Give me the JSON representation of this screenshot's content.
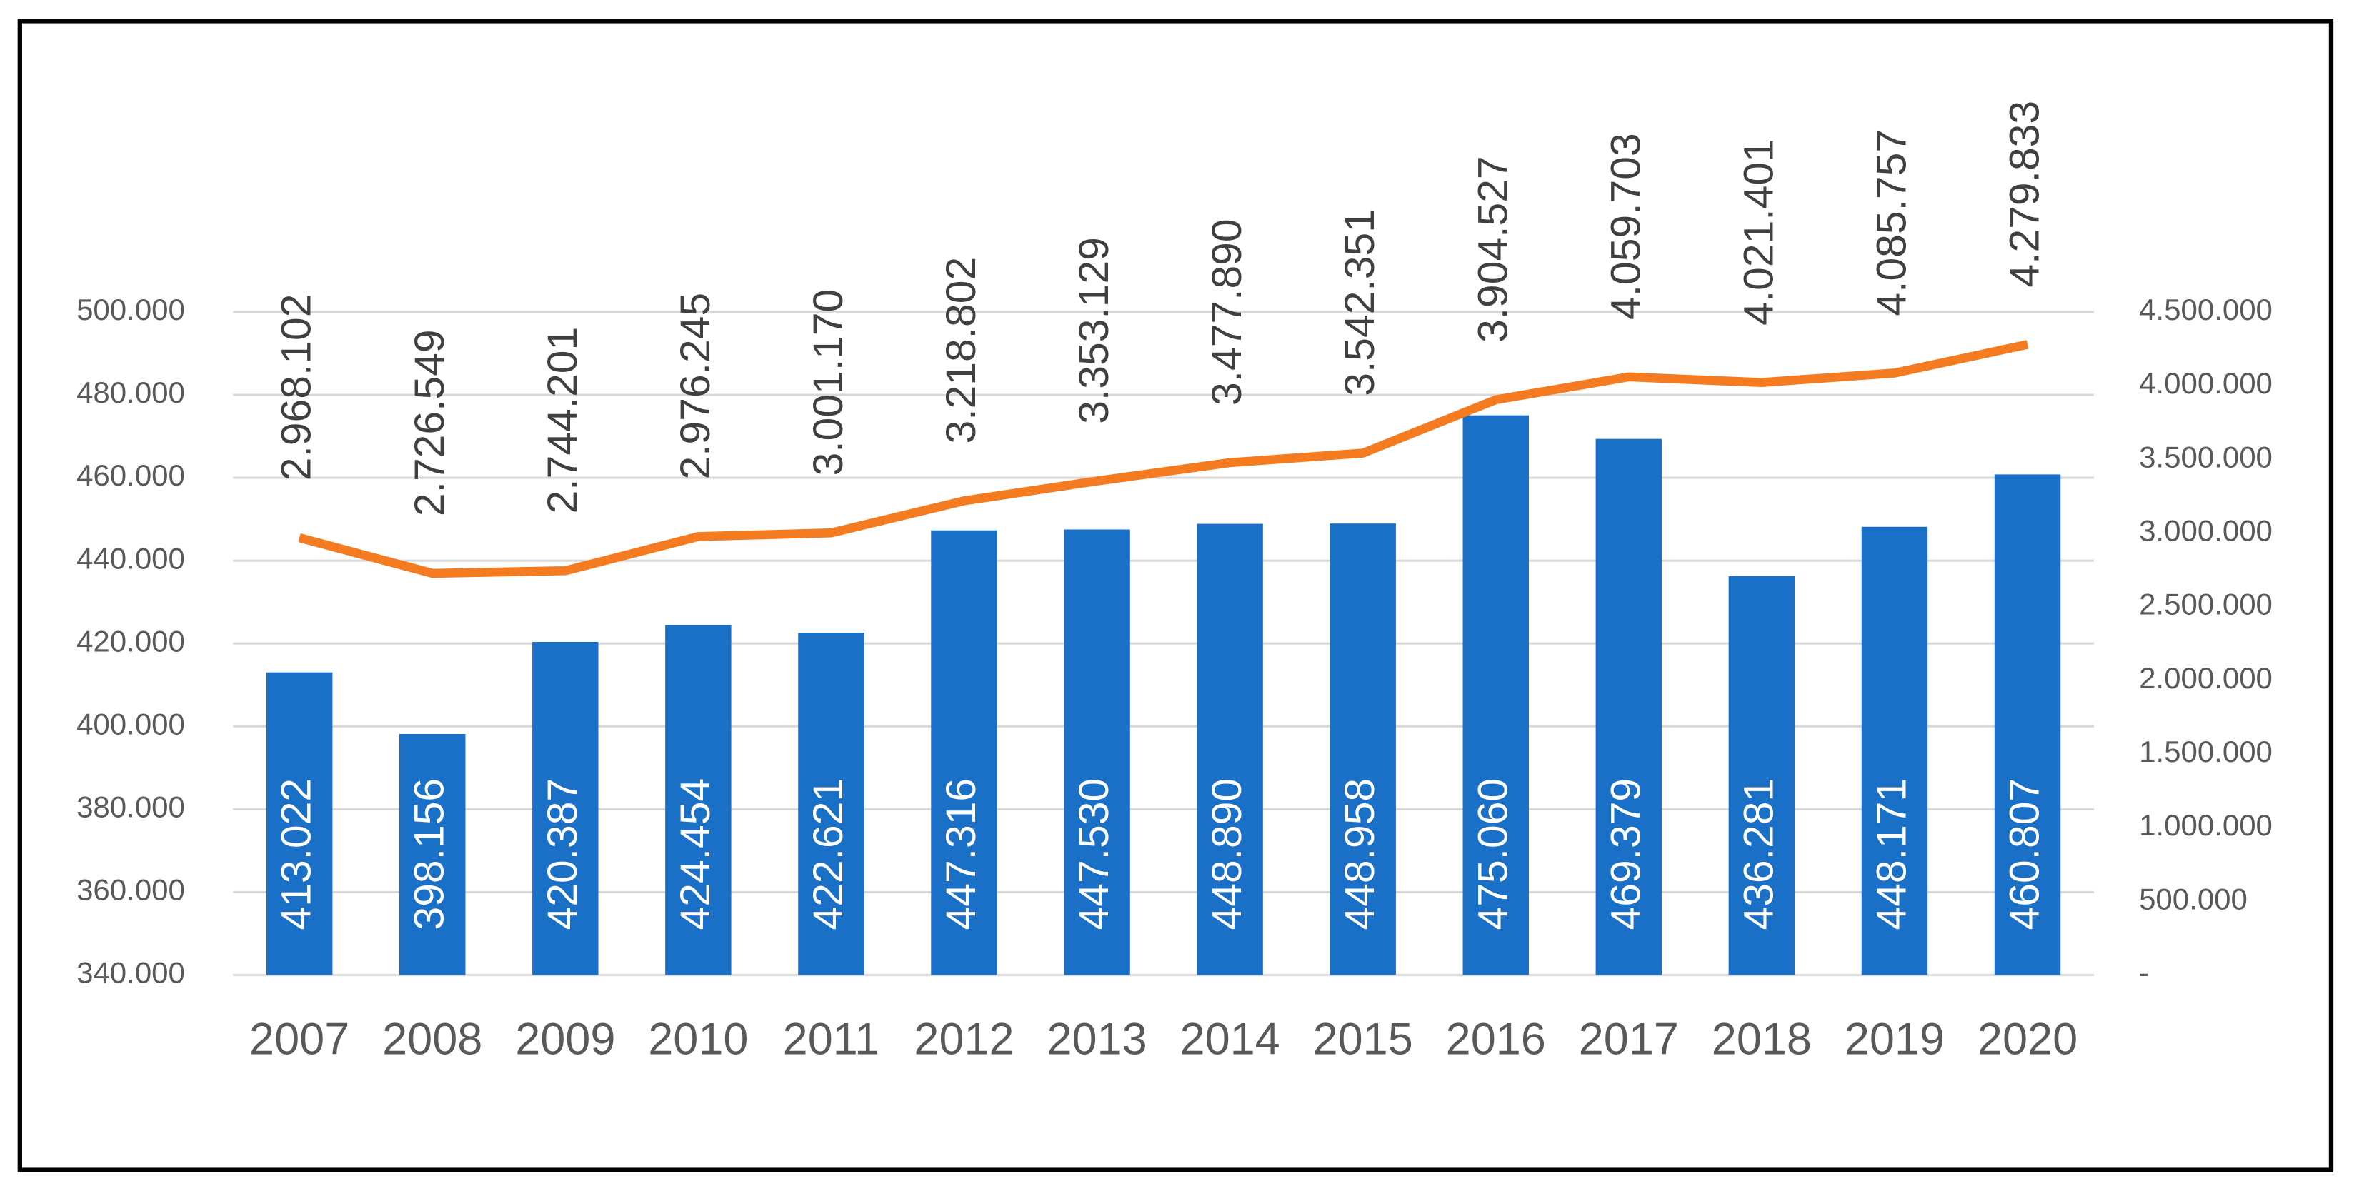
{
  "chart_data": {
    "type": "bar_line",
    "categories": [
      "2007",
      "2008",
      "2009",
      "2010",
      "2011",
      "2012",
      "2013",
      "2014",
      "2015",
      "2016",
      "2017",
      "2018",
      "2019",
      "2020"
    ],
    "series": [
      {
        "type": "bar",
        "color": "#1a70c7",
        "values": [
          413022,
          398156,
          420387,
          424454,
          422621,
          447316,
          447530,
          448890,
          448958,
          475060,
          469379,
          436281,
          448171,
          460807
        ],
        "value_labels": [
          "413.022",
          "398.156",
          "420.387",
          "424.454",
          "422.621",
          "447.316",
          "447.530",
          "448.890",
          "448.958",
          "475.060",
          "469.379",
          "436.281",
          "448.171",
          "460.807"
        ]
      },
      {
        "type": "line",
        "axis": "y2",
        "color": "#f47b20",
        "values": [
          2968102,
          2726549,
          2744201,
          2976245,
          3001170,
          3218802,
          3353129,
          3477890,
          3542351,
          3904527,
          4059703,
          4021401,
          4085757,
          4279833
        ],
        "value_labels": [
          "2.968.102",
          "2.726.549",
          "2.744.201",
          "2.976.245",
          "3.001.170",
          "3.218.802",
          "3.353.129",
          "3.477.890",
          "3.542.351",
          "3.904.527",
          "4.059.703",
          "4.021.401",
          "4.085.757",
          "4.279.833"
        ]
      }
    ],
    "ylim": [
      340000,
      500000
    ],
    "yticks": [
      {
        "value": 340000,
        "label": "340.000"
      },
      {
        "value": 360000,
        "label": "360.000"
      },
      {
        "value": 380000,
        "label": "380.000"
      },
      {
        "value": 400000,
        "label": "400.000"
      },
      {
        "value": 420000,
        "label": "420.000"
      },
      {
        "value": 440000,
        "label": "440.000"
      },
      {
        "value": 460000,
        "label": "460.000"
      },
      {
        "value": 480000,
        "label": "480.000"
      },
      {
        "value": 500000,
        "label": "500.000"
      }
    ],
    "y2lim": [
      0,
      4500000
    ],
    "y2ticks": [
      {
        "value": 0,
        "label": "-"
      },
      {
        "value": 500000,
        "label": "500.000"
      },
      {
        "value": 1000000,
        "label": "1.000.000"
      },
      {
        "value": 1500000,
        "label": "1.500.000"
      },
      {
        "value": 2000000,
        "label": "2.000.000"
      },
      {
        "value": 2500000,
        "label": "2.500.000"
      },
      {
        "value": 3000000,
        "label": "3.000.000"
      },
      {
        "value": 3500000,
        "label": "3.500.000"
      },
      {
        "value": 4000000,
        "label": "4.000.000"
      },
      {
        "value": 4500000,
        "label": "4.500.000"
      }
    ],
    "grid": true
  }
}
